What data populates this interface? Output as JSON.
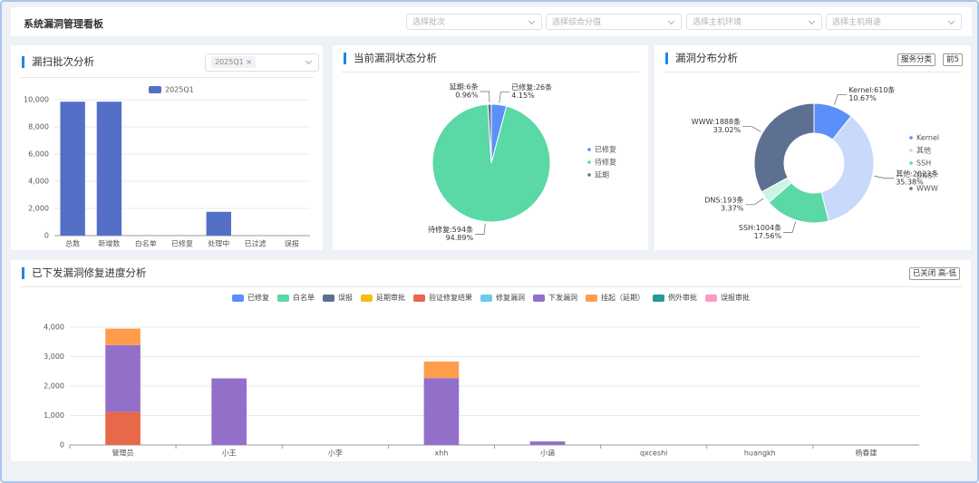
{
  "header": {
    "title": "系统漏洞管理看板",
    "filters": [
      "选择批次",
      "选择综合分值",
      "选择主机环境",
      "选择主机用途"
    ]
  },
  "scan_panel": {
    "title": "漏扫批次分析",
    "selected_tag": "2025Q1",
    "chart": {
      "type": "bar",
      "categories": [
        "总数",
        "新增数",
        "白名单",
        "已修复",
        "处理中",
        "已过滤",
        "误报"
      ],
      "series": [
        {
          "name": "2025Q1",
          "color": "#5470c6",
          "values": [
            9850,
            9850,
            0,
            0,
            1750,
            0,
            0
          ]
        }
      ],
      "ylim": [
        0,
        10000
      ],
      "yticks": [
        0,
        {
          "value": 2000,
          "label": "2,000"
        },
        {
          "value": 4000,
          "label": "4,000"
        },
        {
          "value": 6000,
          "label": "6,000"
        },
        {
          "value": 8000,
          "label": "8,000"
        },
        {
          "value": 10000,
          "label": "10,000"
        }
      ],
      "grid": true
    }
  },
  "status_panel": {
    "title": "当前漏洞状态分析",
    "chart": {
      "type": "pie",
      "categories": [
        "已修复",
        "待修复",
        "延期"
      ],
      "values": [
        26,
        594,
        6
      ],
      "value_labels": [
        "已修复:26条",
        "待修复:594条",
        "延期:6条"
      ],
      "percent_labels": [
        "4.15%",
        "94.89%",
        "0.96%"
      ],
      "colors": [
        "#5b8ff9",
        "#5ad8a6",
        "#5d7092"
      ]
    }
  },
  "dist_panel": {
    "title": "漏洞分布分析",
    "buttons": [
      "服务分类",
      "前5"
    ],
    "chart": {
      "type": "donut",
      "categories": [
        "Kernel",
        "其他",
        "SSH",
        "DNS",
        "WWW"
      ],
      "values": [
        610,
        2023,
        1004,
        193,
        1888
      ],
      "value_labels": [
        "Kernel:610条",
        "其他:2023条",
        "SSH:1004条",
        "DNS:193条",
        "WWW:1888条"
      ],
      "percent_labels": [
        "10.67%",
        "35.38%",
        "17.56%",
        "3.37%",
        "33.02%"
      ],
      "colors": [
        "#5b8ff9",
        "#c9d9fb",
        "#5ad8a6",
        "#cdf3e4",
        "#5d7092"
      ]
    }
  },
  "progress_panel": {
    "title": "已下发漏洞修复进度分析",
    "button": "已关闭 高-低",
    "chart": {
      "type": "stacked-bar",
      "categories": [
        "管理员",
        "小王",
        "小李",
        "xhh",
        "小涵",
        "qxceshi",
        "huangkh",
        "杨春建"
      ],
      "series": [
        {
          "name": "已修复",
          "color": "#5b8ff9",
          "values": [
            0,
            0,
            0,
            0,
            0,
            0,
            0,
            0
          ]
        },
        {
          "name": "白名单",
          "color": "#5ad8a6",
          "values": [
            0,
            0,
            0,
            0,
            0,
            0,
            0,
            0
          ]
        },
        {
          "name": "误报",
          "color": "#5d7092",
          "values": [
            0,
            0,
            0,
            0,
            0,
            0,
            0,
            0
          ]
        },
        {
          "name": "延期审批",
          "color": "#f6bd16",
          "values": [
            0,
            0,
            0,
            0,
            0,
            0,
            0,
            0
          ]
        },
        {
          "name": "验证修复结果",
          "color": "#e8684a",
          "values": [
            1120,
            0,
            0,
            0,
            0,
            0,
            0,
            0
          ]
        },
        {
          "name": "修复漏洞",
          "color": "#6dc8ec",
          "values": [
            0,
            0,
            0,
            0,
            0,
            0,
            0,
            0
          ]
        },
        {
          "name": "下发漏洞",
          "color": "#9270ca",
          "values": [
            2270,
            2260,
            0,
            2270,
            120,
            0,
            0,
            0
          ]
        },
        {
          "name": "挂起（延期）",
          "color": "#ff9d4d",
          "values": [
            560,
            0,
            0,
            560,
            0,
            0,
            0,
            0
          ]
        },
        {
          "name": "例外审批",
          "color": "#269a99",
          "values": [
            0,
            0,
            0,
            0,
            0,
            0,
            0,
            0
          ]
        },
        {
          "name": "误报审批",
          "color": "#ff99c3",
          "values": [
            0,
            0,
            0,
            0,
            0,
            0,
            0,
            0
          ]
        }
      ],
      "ylim": [
        0,
        4000
      ],
      "yticks": [
        0,
        {
          "value": 1000,
          "label": "1,000"
        },
        {
          "value": 2000,
          "label": "2,000"
        },
        {
          "value": 3000,
          "label": "3,000"
        },
        {
          "value": 4000,
          "label": "4,000"
        }
      ],
      "grid": true
    }
  }
}
